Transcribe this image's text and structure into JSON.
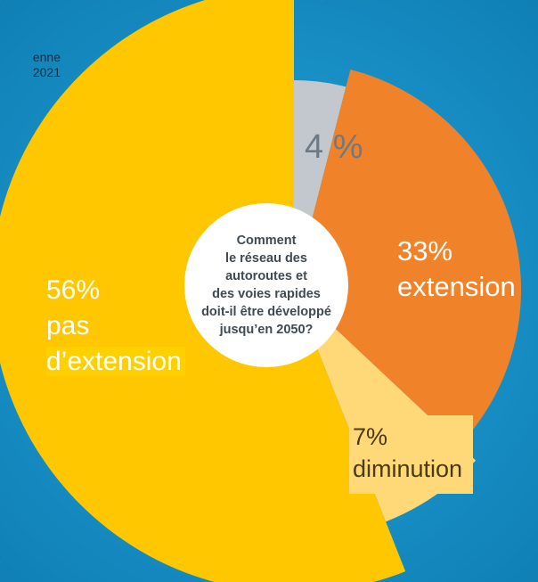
{
  "source_note": [
    "enne",
    "2021"
  ],
  "chart_data": {
    "type": "pie",
    "title": [
      "Comment",
      "le réseau des",
      "autoroutes et",
      "des voies rapides",
      "doit-il être développé",
      "jusqu’en 2050?"
    ],
    "slices": [
      {
        "value": 4,
        "label": "4 %",
        "color": "#c2c8cd"
      },
      {
        "value": 33,
        "label": [
          "33%",
          "extension"
        ],
        "color": "#f0822a"
      },
      {
        "value": 7,
        "label": [
          "7%",
          "diminution"
        ],
        "color": "#ffd978"
      },
      {
        "value": 56,
        "label": [
          "56%",
          "pas",
          "d’extension"
        ],
        "color": "#ffc700"
      }
    ],
    "start": "12 o'clock",
    "direction": "clockwise"
  }
}
